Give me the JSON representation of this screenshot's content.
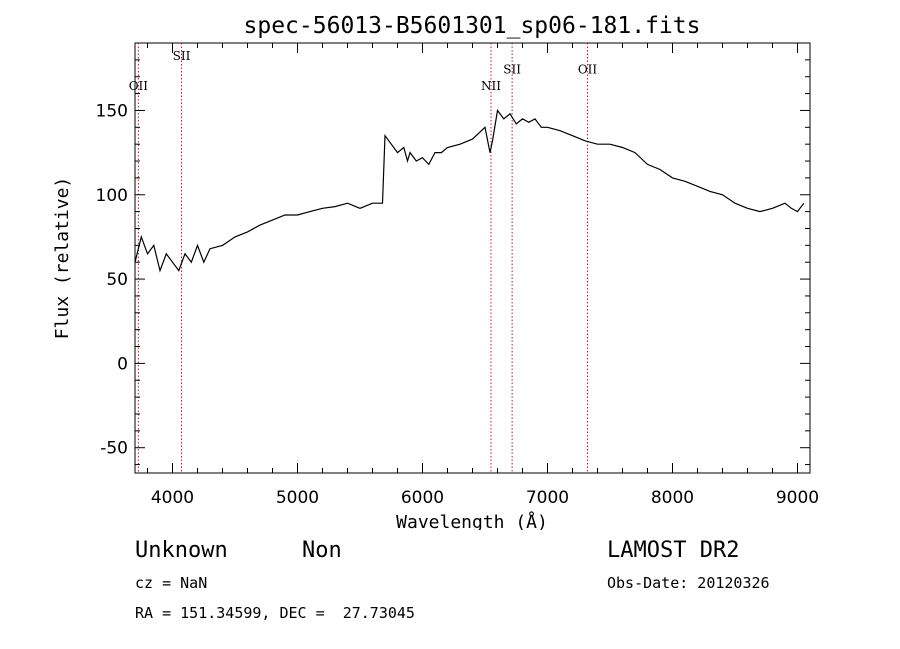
{
  "chart_data": {
    "type": "line",
    "title": "spec-56013-B5601301_sp06-181.fits",
    "xlabel": "Wavelength (Å)",
    "ylabel": "Flux (relative)",
    "xlim": [
      3700,
      9100
    ],
    "ylim": [
      -65,
      190
    ],
    "x_ticks": [
      4000,
      5000,
      6000,
      7000,
      8000,
      9000
    ],
    "y_ticks": [
      -50,
      0,
      50,
      100,
      150
    ],
    "grid": false,
    "line_color": "#000000",
    "marker_color": "#b22222",
    "series": [
      {
        "x": [
          3700,
          3750,
          3800,
          3850,
          3900,
          3950,
          4000,
          4050,
          4100,
          4150,
          4200,
          4250,
          4300,
          4400,
          4500,
          4600,
          4700,
          4800,
          4900,
          5000,
          5100,
          5200,
          5300,
          5400,
          5500,
          5600,
          5680,
          5700,
          5750,
          5800,
          5850,
          5880,
          5900,
          5950,
          6000,
          6050,
          6100,
          6150,
          6200,
          6300,
          6400,
          6500,
          6540,
          6560,
          6600,
          6650,
          6700,
          6750,
          6800,
          6850,
          6900,
          6950,
          7000,
          7100,
          7200,
          7300,
          7400,
          7500,
          7600,
          7700,
          7800,
          7900,
          8000,
          8100,
          8200,
          8300,
          8400,
          8500,
          8600,
          8700,
          8800,
          8900,
          8950,
          9000,
          9050
        ],
        "y": [
          60,
          75,
          65,
          70,
          55,
          65,
          60,
          55,
          65,
          60,
          70,
          60,
          68,
          70,
          75,
          78,
          82,
          85,
          88,
          88,
          90,
          92,
          93,
          95,
          92,
          95,
          95,
          135,
          130,
          125,
          128,
          120,
          125,
          120,
          122,
          118,
          125,
          125,
          128,
          130,
          133,
          140,
          125,
          132,
          150,
          145,
          148,
          142,
          145,
          143,
          145,
          140,
          140,
          138,
          135,
          132,
          130,
          130,
          128,
          125,
          118,
          115,
          110,
          108,
          105,
          102,
          100,
          95,
          92,
          90,
          92,
          95,
          92,
          90,
          95
        ]
      }
    ],
    "lines": [
      {
        "label": "OII",
        "x": 3727,
        "label_y": 162
      },
      {
        "label": "SII",
        "x": 4072,
        "label_y": 180
      },
      {
        "label": "NII",
        "x": 6548,
        "label_y": 162
      },
      {
        "label": "SII",
        "x": 6717,
        "label_y": 172
      },
      {
        "label": "OII",
        "x": 7320,
        "label_y": 172
      }
    ]
  },
  "info": {
    "classification": "Unknown",
    "subclass": "Non",
    "survey": "LAMOST DR2",
    "cz": "cz = NaN",
    "obs_date": "Obs-Date: 20120326",
    "coords": "RA = 151.34599, DEC =  27.73045"
  }
}
